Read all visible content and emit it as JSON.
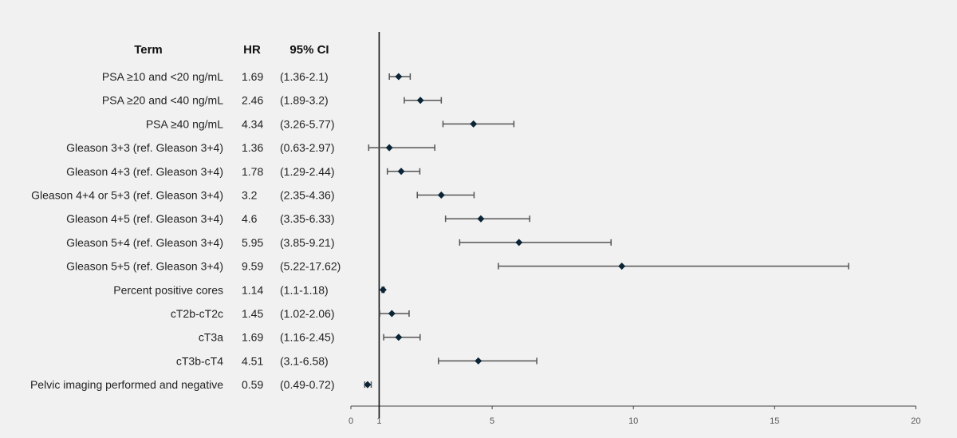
{
  "chart_data": {
    "type": "forest",
    "headers": {
      "term": "Term",
      "hr": "HR",
      "ci": "95% CI"
    },
    "reference_line": 1,
    "xlim": [
      0,
      20
    ],
    "x_ticks": [
      0,
      1,
      5,
      10,
      15,
      20
    ],
    "rows": [
      {
        "term": "PSA ≥10 and <20 ng/mL",
        "hr": 1.69,
        "hr_text": "1.69",
        "ci_text": "(1.36-2.1)",
        "lower": 1.36,
        "upper": 2.1
      },
      {
        "term": "PSA ≥20 and <40 ng/mL",
        "hr": 2.46,
        "hr_text": "2.46",
        "ci_text": "(1.89-3.2)",
        "lower": 1.89,
        "upper": 3.2
      },
      {
        "term": "PSA ≥40 ng/mL",
        "hr": 4.34,
        "hr_text": "4.34",
        "ci_text": "(3.26-5.77)",
        "lower": 3.26,
        "upper": 5.77
      },
      {
        "term": "Gleason 3+3 (ref. Gleason 3+4)",
        "hr": 1.36,
        "hr_text": "1.36",
        "ci_text": "(0.63-2.97)",
        "lower": 0.63,
        "upper": 2.97
      },
      {
        "term": "Gleason 4+3 (ref. Gleason 3+4)",
        "hr": 1.78,
        "hr_text": "1.78",
        "ci_text": "(1.29-2.44)",
        "lower": 1.29,
        "upper": 2.44
      },
      {
        "term": "Gleason 4+4 or 5+3 (ref. Gleason 3+4)",
        "hr": 3.2,
        "hr_text": "3.2",
        "ci_text": "(2.35-4.36)",
        "lower": 2.35,
        "upper": 4.36
      },
      {
        "term": "Gleason 4+5 (ref. Gleason 3+4)",
        "hr": 4.6,
        "hr_text": "4.6",
        "ci_text": "(3.35-6.33)",
        "lower": 3.35,
        "upper": 6.33
      },
      {
        "term": "Gleason 5+4 (ref. Gleason 3+4)",
        "hr": 5.95,
        "hr_text": "5.95",
        "ci_text": "(3.85-9.21)",
        "lower": 3.85,
        "upper": 9.21
      },
      {
        "term": "Gleason 5+5 (ref. Gleason 3+4)",
        "hr": 9.59,
        "hr_text": "9.59",
        "ci_text": "(5.22-17.62)",
        "lower": 5.22,
        "upper": 17.62
      },
      {
        "term": "Percent positive cores",
        "hr": 1.14,
        "hr_text": "1.14",
        "ci_text": "(1.1-1.18)",
        "lower": 1.1,
        "upper": 1.18
      },
      {
        "term": "cT2b-cT2c",
        "hr": 1.45,
        "hr_text": "1.45",
        "ci_text": "(1.02-2.06)",
        "lower": 1.02,
        "upper": 2.06
      },
      {
        "term": "cT3a",
        "hr": 1.69,
        "hr_text": "1.69",
        "ci_text": "(1.16-2.45)",
        "lower": 1.16,
        "upper": 2.45
      },
      {
        "term": "cT3b-cT4",
        "hr": 4.51,
        "hr_text": "4.51",
        "ci_text": "(3.1-6.58)",
        "lower": 3.1,
        "upper": 6.58
      },
      {
        "term": "Pelvic imaging performed and negative",
        "hr": 0.59,
        "hr_text": "0.59",
        "ci_text": "(0.49-0.72)",
        "lower": 0.49,
        "upper": 0.72
      }
    ],
    "colors": {
      "background": "#f1f1f1",
      "marker": "#0b2536",
      "line": "#555555",
      "axis": "#111111",
      "text": "#222222"
    }
  }
}
